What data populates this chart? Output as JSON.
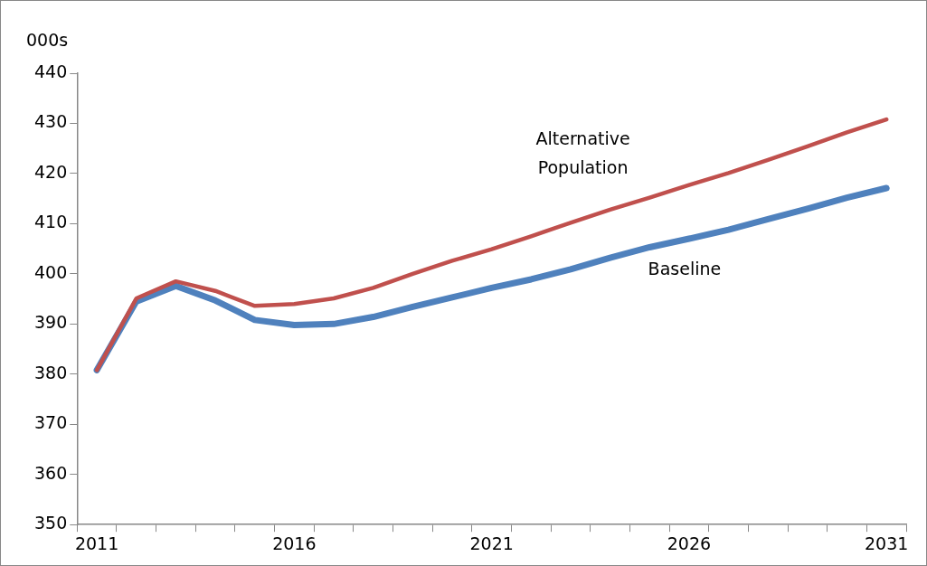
{
  "chart_data": {
    "type": "line",
    "ylabel": "000s",
    "categories": [
      "2011",
      null,
      null,
      null,
      null,
      "2016",
      null,
      null,
      null,
      null,
      "2021",
      null,
      null,
      null,
      null,
      "2026",
      null,
      null,
      null,
      null,
      "2031"
    ],
    "series": [
      {
        "name": "Alternative Population",
        "color": "#c0504d",
        "values": [
          380.8,
          395.1,
          398.5,
          396.6,
          393.6,
          394.0,
          395.1,
          397.2,
          400.0,
          402.6,
          404.9,
          407.5,
          410.2,
          412.8,
          415.2,
          417.7,
          420.1,
          422.7,
          425.4,
          428.2,
          430.8
        ]
      },
      {
        "name": "Baseline",
        "color": "#4f81bd",
        "values": [
          380.8,
          394.5,
          397.6,
          394.7,
          390.8,
          389.8,
          390.0,
          391.4,
          393.4,
          395.3,
          397.2,
          398.9,
          400.9,
          403.2,
          405.3,
          407.0,
          408.8,
          410.9,
          413.0,
          415.2,
          417.1
        ]
      }
    ],
    "ylim": [
      350,
      440
    ],
    "yticks": [
      350,
      360,
      370,
      380,
      390,
      400,
      410,
      420,
      430,
      440
    ],
    "grid": false,
    "legend": false,
    "marker": "none",
    "line_style": "solid"
  }
}
